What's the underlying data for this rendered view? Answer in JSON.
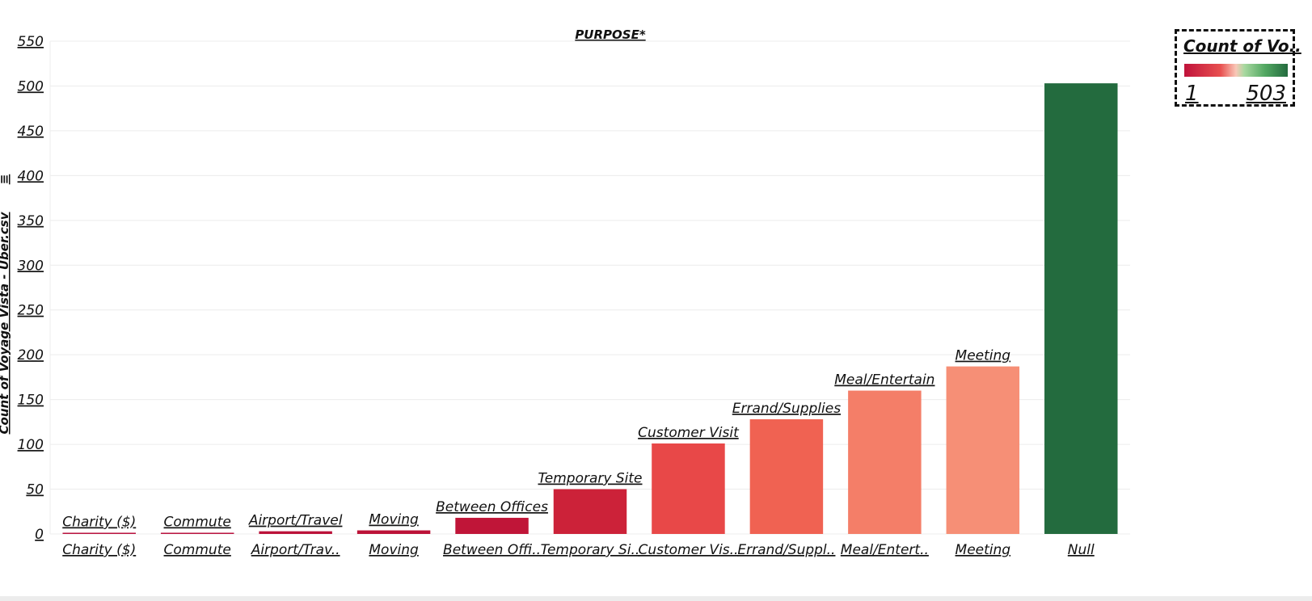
{
  "chart_data": {
    "type": "bar",
    "title": "PURPOSE*",
    "ylabel": "Count of Voyage Vista - Uber.csv",
    "ylabel_suffix": "≡",
    "ylim": [
      0,
      550
    ],
    "yticks": [
      0,
      50,
      100,
      150,
      200,
      250,
      300,
      350,
      400,
      450,
      500,
      550
    ],
    "grid": true,
    "categories": [
      "Charity ($)",
      "Commute",
      "Airport/Trav..",
      "Moving",
      "Between Offi..",
      "Temporary Si..",
      "Customer Vis..",
      "Errand/Suppl..",
      "Meal/Entert..",
      "Meeting",
      "Null"
    ],
    "data_labels": [
      "Charity ($)",
      "Commute",
      "Airport/Travel",
      "Moving",
      "Between Offices",
      "Temporary Site",
      "Customer Visit",
      "Errand/Supplies",
      "Meal/Entertain",
      "Meeting",
      ""
    ],
    "values": [
      1,
      1,
      3,
      4,
      18,
      50,
      101,
      128,
      160,
      187,
      503
    ],
    "colors": [
      "#b8123e",
      "#b8123e",
      "#bb1239",
      "#bc1338",
      "#c01538",
      "#cc2239",
      "#e84848",
      "#f06252",
      "#f47e68",
      "#f68f76",
      "#236b3e"
    ]
  },
  "legend": {
    "title": "Count of Vo..",
    "min_label": "1",
    "max_label": "503",
    "position": "top-right"
  }
}
